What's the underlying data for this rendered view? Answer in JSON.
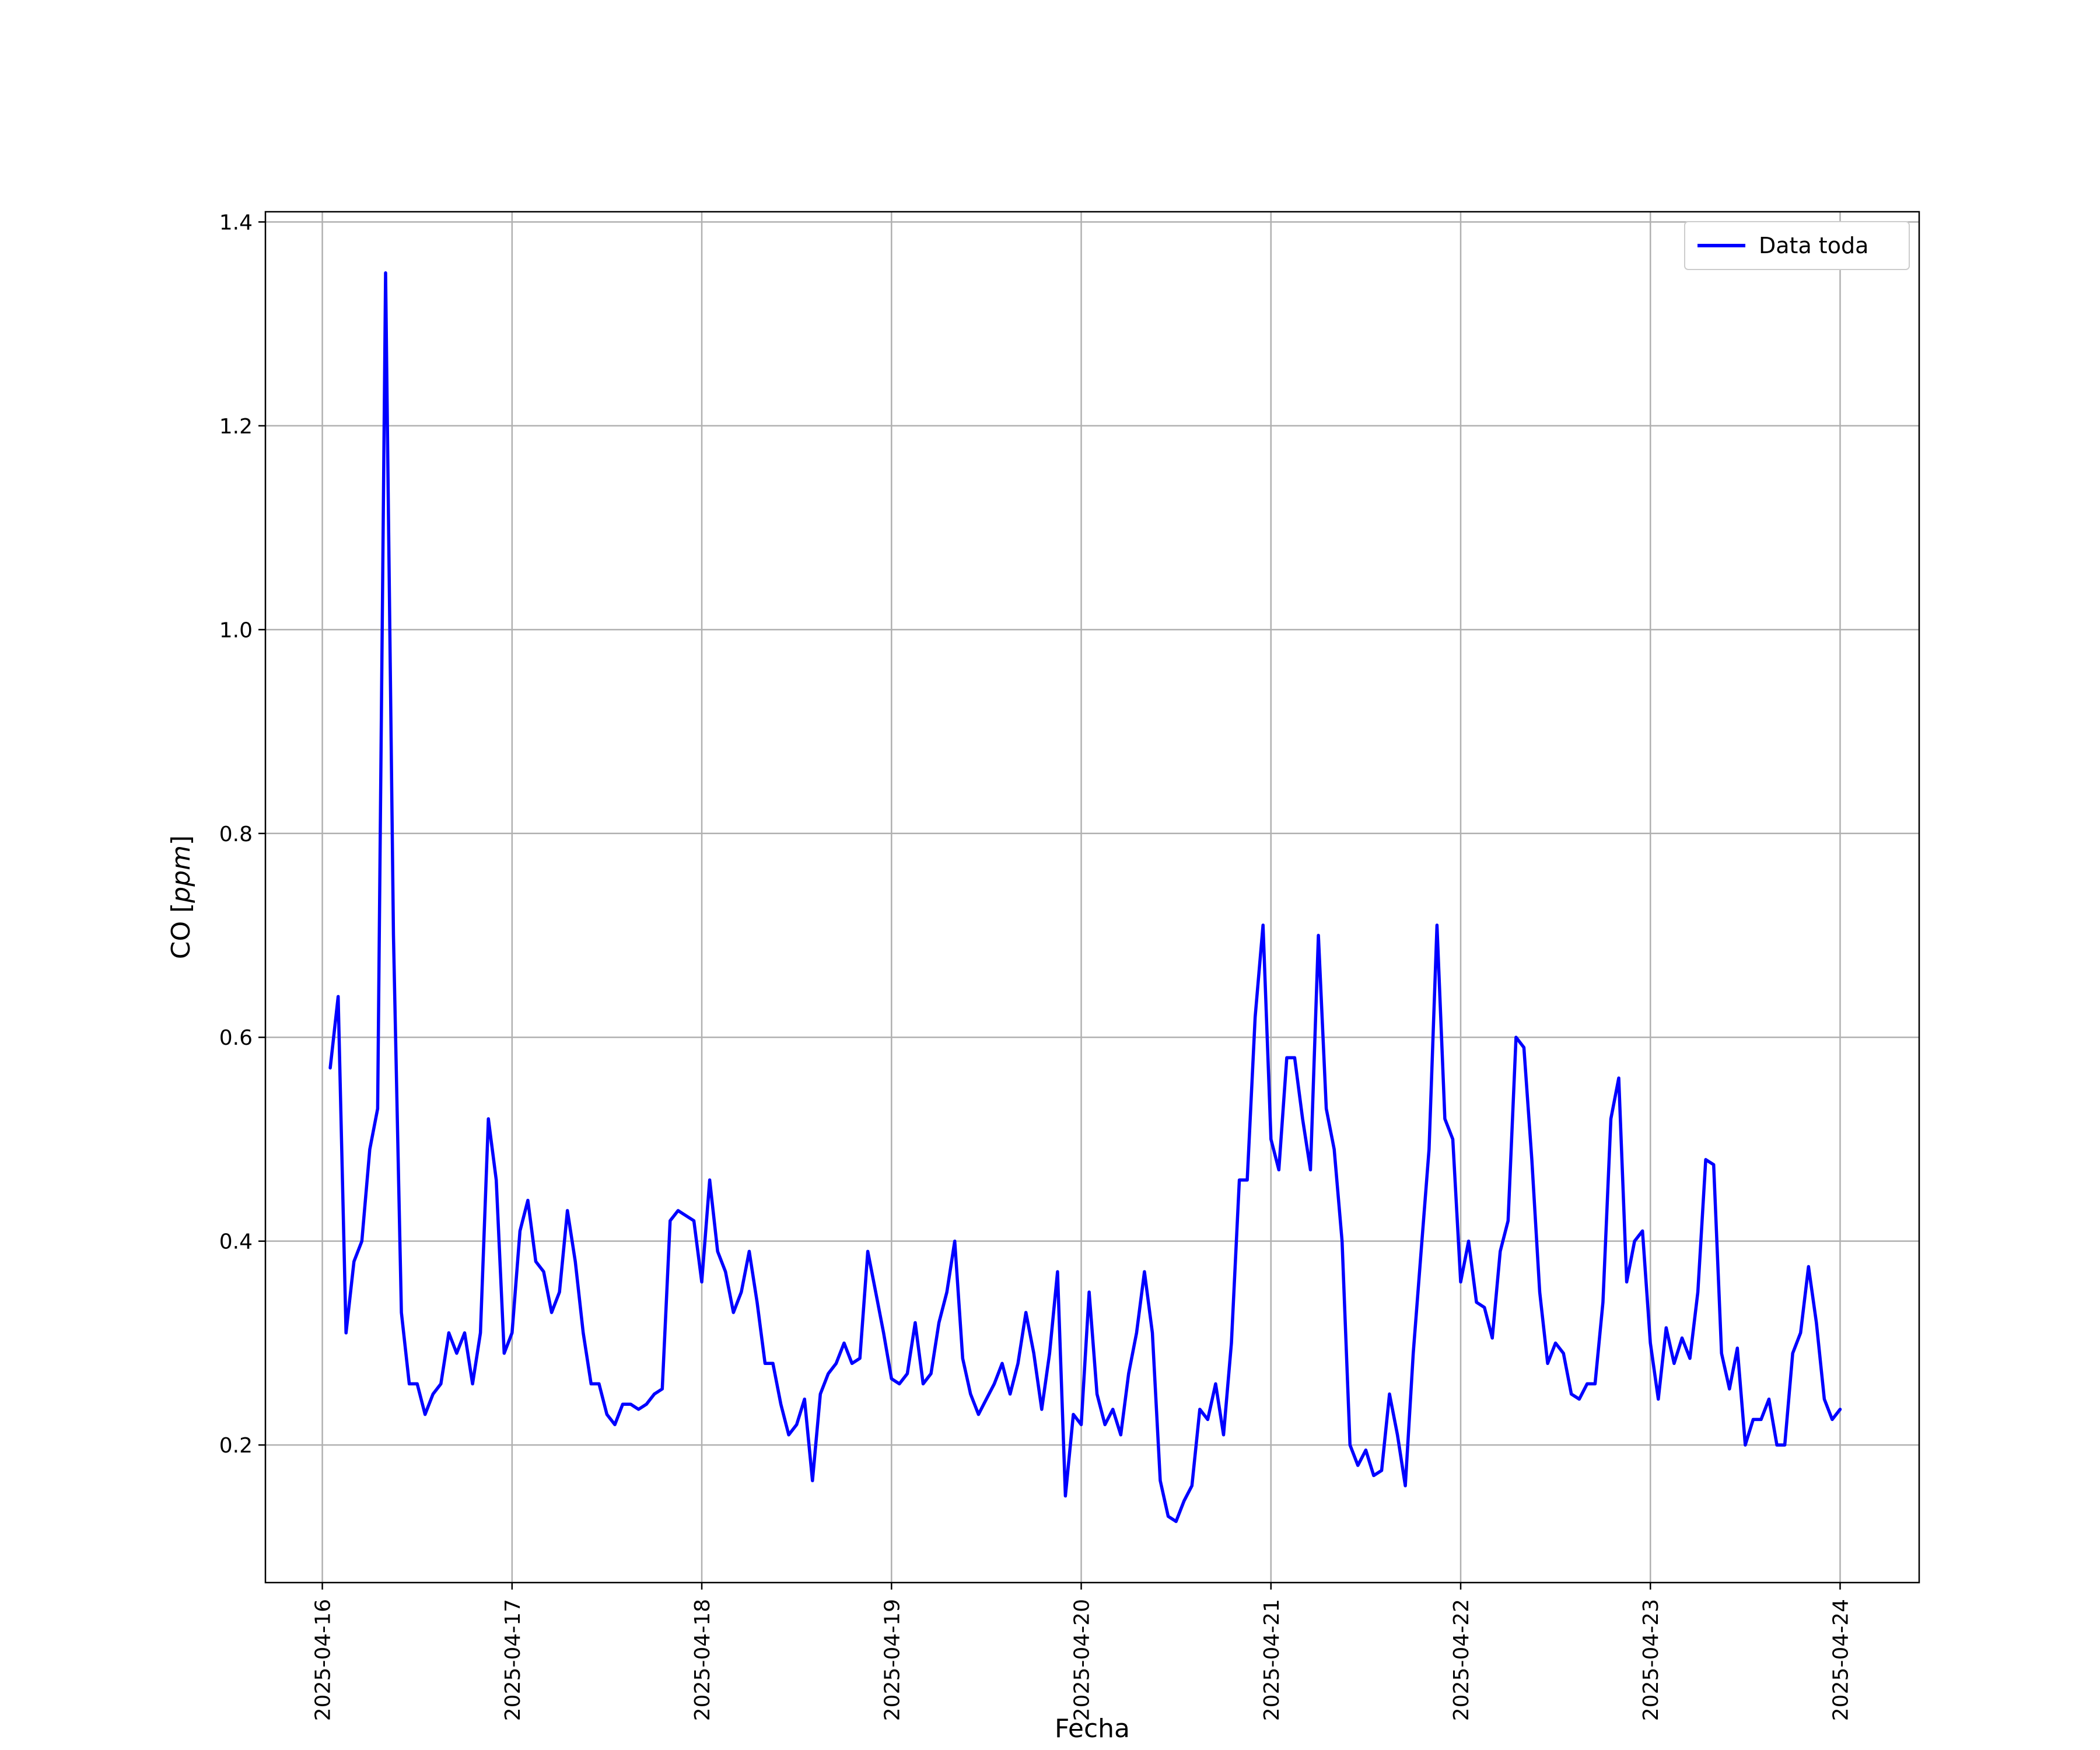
{
  "chart_data": {
    "type": "line",
    "title": "",
    "xlabel": "Fecha",
    "ylabel": "CO [ppm]",
    "xlim": [
      "2025-04-15T16:48",
      "2025-04-24T10:00"
    ],
    "ylim": [
      0.065,
      1.41
    ],
    "grid": true,
    "legend_position": "top-right",
    "x_ticks": [
      "2025-04-16",
      "2025-04-17",
      "2025-04-18",
      "2025-04-19",
      "2025-04-20",
      "2025-04-21",
      "2025-04-22",
      "2025-04-23",
      "2025-04-24"
    ],
    "y_ticks": [
      0.2,
      0.4,
      0.6,
      0.8,
      1.0,
      1.2,
      1.4
    ],
    "series": [
      {
        "name": "Data toda",
        "color": "#0000ff",
        "x": [
          "2025-04-16T01:00",
          "2025-04-16T02:00",
          "2025-04-16T03:00",
          "2025-04-16T04:00",
          "2025-04-16T05:00",
          "2025-04-16T06:00",
          "2025-04-16T07:00",
          "2025-04-16T08:00",
          "2025-04-16T09:00",
          "2025-04-16T10:00",
          "2025-04-16T11:00",
          "2025-04-16T12:00",
          "2025-04-16T13:00",
          "2025-04-16T14:00",
          "2025-04-16T15:00",
          "2025-04-16T16:00",
          "2025-04-16T17:00",
          "2025-04-16T18:00",
          "2025-04-16T19:00",
          "2025-04-16T20:00",
          "2025-04-16T21:00",
          "2025-04-16T22:00",
          "2025-04-16T23:00",
          "2025-04-17T00:00",
          "2025-04-17T01:00",
          "2025-04-17T02:00",
          "2025-04-17T03:00",
          "2025-04-17T04:00",
          "2025-04-17T05:00",
          "2025-04-17T06:00",
          "2025-04-17T07:00",
          "2025-04-17T08:00",
          "2025-04-17T09:00",
          "2025-04-17T10:00",
          "2025-04-17T11:00",
          "2025-04-17T12:00",
          "2025-04-17T13:00",
          "2025-04-17T14:00",
          "2025-04-17T15:00",
          "2025-04-17T16:00",
          "2025-04-17T17:00",
          "2025-04-17T18:00",
          "2025-04-17T19:00",
          "2025-04-17T20:00",
          "2025-04-17T21:00",
          "2025-04-17T22:00",
          "2025-04-17T23:00",
          "2025-04-18T00:00",
          "2025-04-18T01:00",
          "2025-04-18T02:00",
          "2025-04-18T03:00",
          "2025-04-18T04:00",
          "2025-04-18T05:00",
          "2025-04-18T06:00",
          "2025-04-18T07:00",
          "2025-04-18T08:00",
          "2025-04-18T09:00",
          "2025-04-18T10:00",
          "2025-04-18T11:00",
          "2025-04-18T12:00",
          "2025-04-18T13:00",
          "2025-04-18T14:00",
          "2025-04-18T15:00",
          "2025-04-18T16:00",
          "2025-04-18T17:00",
          "2025-04-18T18:00",
          "2025-04-18T19:00",
          "2025-04-18T20:00",
          "2025-04-18T21:00",
          "2025-04-18T22:00",
          "2025-04-18T23:00",
          "2025-04-19T00:00",
          "2025-04-19T01:00",
          "2025-04-19T02:00",
          "2025-04-19T03:00",
          "2025-04-19T04:00",
          "2025-04-19T05:00",
          "2025-04-19T06:00",
          "2025-04-19T07:00",
          "2025-04-19T08:00",
          "2025-04-19T09:00",
          "2025-04-19T10:00",
          "2025-04-19T11:00",
          "2025-04-19T12:00",
          "2025-04-19T13:00",
          "2025-04-19T14:00",
          "2025-04-19T15:00",
          "2025-04-19T16:00",
          "2025-04-19T17:00",
          "2025-04-19T18:00",
          "2025-04-19T19:00",
          "2025-04-19T20:00",
          "2025-04-19T21:00",
          "2025-04-19T22:00",
          "2025-04-19T23:00",
          "2025-04-20T00:00",
          "2025-04-20T01:00",
          "2025-04-20T02:00",
          "2025-04-20T03:00",
          "2025-04-20T04:00",
          "2025-04-20T05:00",
          "2025-04-20T06:00",
          "2025-04-20T07:00",
          "2025-04-20T08:00",
          "2025-04-20T09:00",
          "2025-04-20T10:00",
          "2025-04-20T11:00",
          "2025-04-20T12:00",
          "2025-04-20T13:00",
          "2025-04-20T14:00",
          "2025-04-20T15:00",
          "2025-04-20T16:00",
          "2025-04-20T17:00",
          "2025-04-20T18:00",
          "2025-04-20T19:00",
          "2025-04-20T20:00",
          "2025-04-20T21:00",
          "2025-04-20T22:00",
          "2025-04-20T23:00",
          "2025-04-21T00:00",
          "2025-04-21T01:00",
          "2025-04-21T02:00",
          "2025-04-21T03:00",
          "2025-04-21T04:00",
          "2025-04-21T05:00",
          "2025-04-21T06:00",
          "2025-04-21T07:00",
          "2025-04-21T08:00",
          "2025-04-21T09:00",
          "2025-04-21T10:00",
          "2025-04-21T11:00",
          "2025-04-21T12:00",
          "2025-04-21T13:00",
          "2025-04-21T14:00",
          "2025-04-21T15:00",
          "2025-04-21T16:00",
          "2025-04-21T17:00",
          "2025-04-21T18:00",
          "2025-04-21T19:00",
          "2025-04-21T20:00",
          "2025-04-21T21:00",
          "2025-04-21T22:00",
          "2025-04-21T23:00",
          "2025-04-22T00:00",
          "2025-04-22T01:00",
          "2025-04-22T02:00",
          "2025-04-22T03:00",
          "2025-04-22T04:00",
          "2025-04-22T05:00",
          "2025-04-22T06:00",
          "2025-04-22T07:00",
          "2025-04-22T08:00",
          "2025-04-22T09:00",
          "2025-04-22T10:00",
          "2025-04-22T11:00",
          "2025-04-22T12:00",
          "2025-04-22T13:00",
          "2025-04-22T14:00",
          "2025-04-22T15:00",
          "2025-04-22T16:00",
          "2025-04-22T17:00",
          "2025-04-22T18:00",
          "2025-04-22T19:00",
          "2025-04-22T20:00",
          "2025-04-22T21:00",
          "2025-04-22T22:00",
          "2025-04-22T23:00",
          "2025-04-23T00:00",
          "2025-04-23T01:00",
          "2025-04-23T02:00",
          "2025-04-23T03:00",
          "2025-04-23T04:00",
          "2025-04-23T05:00",
          "2025-04-23T06:00",
          "2025-04-23T07:00",
          "2025-04-23T08:00",
          "2025-04-23T09:00",
          "2025-04-23T10:00",
          "2025-04-23T11:00",
          "2025-04-23T12:00",
          "2025-04-23T13:00",
          "2025-04-23T14:00",
          "2025-04-23T15:00",
          "2025-04-23T16:00",
          "2025-04-23T17:00",
          "2025-04-23T18:00",
          "2025-04-23T19:00",
          "2025-04-23T20:00",
          "2025-04-23T21:00",
          "2025-04-23T22:00",
          "2025-04-23T23:00",
          "2025-04-24T00:00"
        ],
        "values": [
          0.57,
          0.64,
          0.31,
          0.38,
          0.4,
          0.49,
          0.53,
          1.35,
          0.7,
          0.33,
          0.26,
          0.26,
          0.23,
          0.25,
          0.26,
          0.31,
          0.29,
          0.31,
          0.26,
          0.31,
          0.52,
          0.46,
          0.29,
          0.31,
          0.41,
          0.44,
          0.38,
          0.37,
          0.33,
          0.35,
          0.43,
          0.38,
          0.31,
          0.26,
          0.26,
          0.23,
          0.22,
          0.24,
          0.24,
          0.235,
          0.24,
          0.25,
          0.255,
          0.42,
          0.43,
          0.425,
          0.42,
          0.36,
          0.46,
          0.39,
          0.37,
          0.33,
          0.35,
          0.39,
          0.34,
          0.28,
          0.28,
          0.24,
          0.21,
          0.22,
          0.245,
          0.165,
          0.25,
          0.27,
          0.28,
          0.3,
          0.28,
          0.285,
          0.39,
          0.35,
          0.31,
          0.265,
          0.26,
          0.27,
          0.32,
          0.26,
          0.27,
          0.32,
          0.35,
          0.4,
          0.285,
          0.25,
          0.23,
          0.245,
          0.26,
          0.28,
          0.25,
          0.28,
          0.33,
          0.29,
          0.235,
          0.29,
          0.37,
          0.15,
          0.23,
          0.22,
          0.35,
          0.25,
          0.22,
          0.235,
          0.21,
          0.27,
          0.31,
          0.37,
          0.31,
          0.165,
          0.13,
          0.125,
          0.145,
          0.16,
          0.235,
          0.225,
          0.26,
          0.21,
          0.3,
          0.46,
          0.46,
          0.62,
          0.71,
          0.5,
          0.47,
          0.58,
          0.58,
          0.52,
          0.47,
          0.7,
          0.53,
          0.49,
          0.4,
          0.2,
          0.18,
          0.195,
          0.17,
          0.175,
          0.25,
          0.21,
          0.16,
          0.29,
          0.39,
          0.49,
          0.71,
          0.52,
          0.5,
          0.36,
          0.4,
          0.34,
          0.335,
          0.305,
          0.39,
          0.42,
          0.6,
          0.59,
          0.48,
          0.35,
          0.28,
          0.3,
          0.29,
          0.25,
          0.245,
          0.26,
          0.26,
          0.34,
          0.52,
          0.56,
          0.36,
          0.4,
          0.41,
          0.3,
          0.245,
          0.315,
          0.28,
          0.305,
          0.285,
          0.35,
          0.48,
          0.475,
          0.29,
          0.255,
          0.295,
          0.2,
          0.225,
          0.225,
          0.245,
          0.2,
          0.2,
          0.29,
          0.31,
          0.375,
          0.32,
          0.245,
          0.225,
          0.235
        ]
      }
    ]
  }
}
